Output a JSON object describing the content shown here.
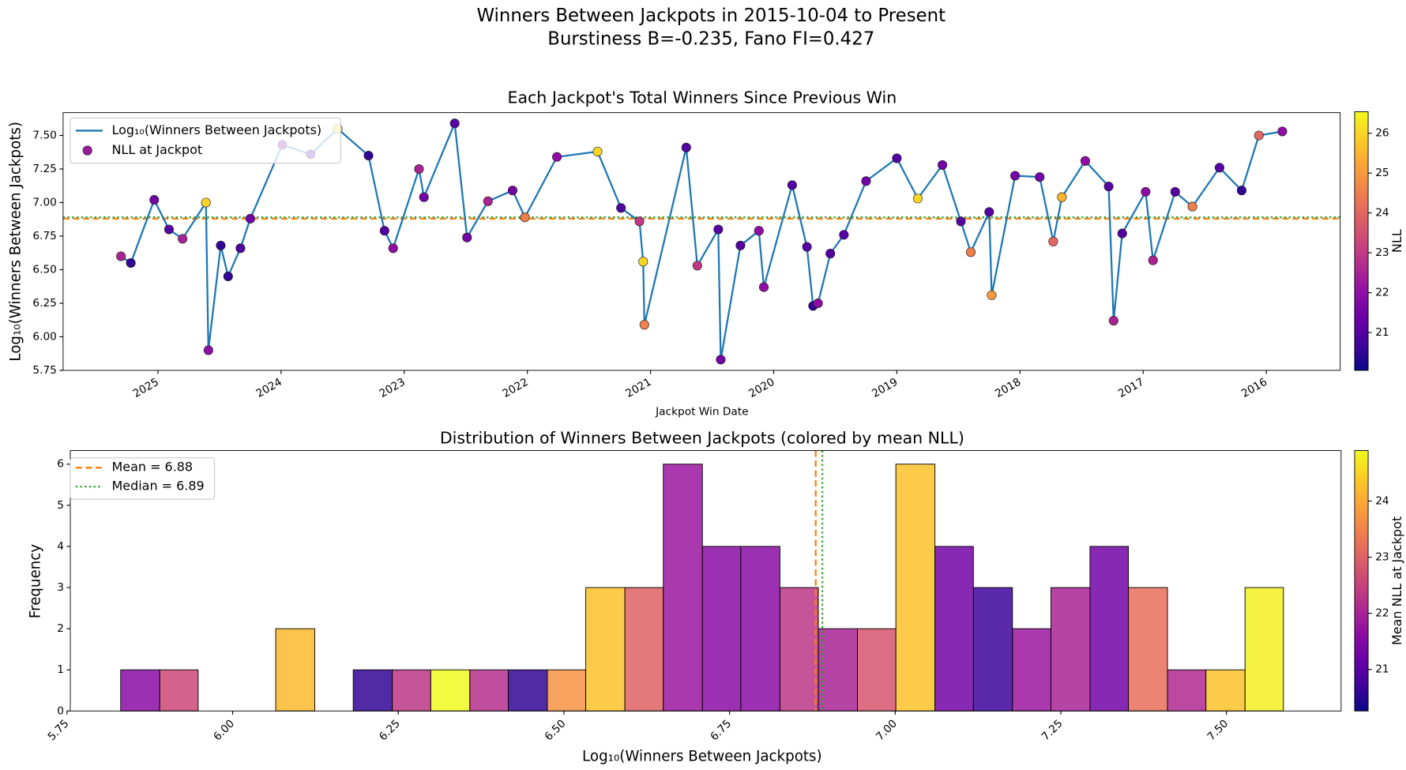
{
  "chart_data": [
    {
      "type": "line",
      "title": "Winners Between Jackpots in 2015-10-04 to Present",
      "subtitle": "Burstiness B=-0.235, Fano FI=0.427",
      "plot_title": "Each Jackpot's Total Winners Since Previous Win",
      "x_label": "Jackpot Win Date",
      "y_label": "Log₁₀(Winners Between Jackpots)",
      "x": [
        2025.3,
        2025.22,
        2025.03,
        2024.91,
        2024.8,
        2024.61,
        2024.59,
        2024.49,
        2024.43,
        2024.33,
        2024.25,
        2023.99,
        2023.76,
        2023.54,
        2023.29,
        2023.16,
        2023.09,
        2022.88,
        2022.84,
        2022.59,
        2022.49,
        2022.32,
        2022.12,
        2022.02,
        2021.76,
        2021.43,
        2021.24,
        2021.09,
        2021.06,
        2021.05,
        2020.71,
        2020.62,
        2020.45,
        2020.43,
        2020.27,
        2020.12,
        2020.08,
        2019.85,
        2019.73,
        2019.68,
        2019.64,
        2019.54,
        2019.43,
        2019.25,
        2019.0,
        2018.83,
        2018.63,
        2018.48,
        2018.4,
        2018.25,
        2018.23,
        2018.04,
        2017.84,
        2017.73,
        2017.66,
        2017.47,
        2017.28,
        2017.24,
        2017.17,
        2016.98,
        2016.92,
        2016.74,
        2016.6,
        2016.38,
        2016.2,
        2016.06,
        2015.87
      ],
      "series": [
        {
          "name": "Log₁₀(Winners Between Jackpots)",
          "color": "#1f77b4",
          "values": [
            6.6,
            6.55,
            7.02,
            6.8,
            6.73,
            7.0,
            5.9,
            6.68,
            6.45,
            6.66,
            6.88,
            7.43,
            7.36,
            7.55,
            7.35,
            6.79,
            6.66,
            7.25,
            7.04,
            7.59,
            6.74,
            7.01,
            7.09,
            6.89,
            7.34,
            7.38,
            6.96,
            6.86,
            6.56,
            6.09,
            7.41,
            6.53,
            6.8,
            5.83,
            6.68,
            6.79,
            6.37,
            7.13,
            6.67,
            6.23,
            6.25,
            6.62,
            6.76,
            7.16,
            7.33,
            7.03,
            7.28,
            6.86,
            6.63,
            6.93,
            6.31,
            7.2,
            7.19,
            6.71,
            7.04,
            7.31,
            7.12,
            6.12,
            6.77,
            7.08,
            6.57,
            7.08,
            6.97,
            7.26,
            7.09,
            7.5,
            7.53
          ]
        },
        {
          "name": "NLL at Jackpot",
          "values": [
            6.6,
            6.55,
            7.02,
            6.8,
            6.73,
            7.0,
            5.9,
            6.68,
            6.45,
            6.66,
            6.88,
            7.43,
            7.36,
            7.55,
            7.35,
            6.79,
            6.66,
            7.25,
            7.04,
            7.59,
            6.74,
            7.01,
            7.09,
            6.89,
            7.34,
            7.38,
            6.96,
            6.86,
            6.56,
            6.09,
            7.41,
            6.53,
            6.8,
            5.83,
            6.68,
            6.79,
            6.37,
            7.13,
            6.67,
            6.23,
            6.25,
            6.62,
            6.76,
            7.16,
            7.33,
            7.03,
            7.28,
            6.86,
            6.63,
            6.93,
            6.31,
            7.2,
            7.19,
            6.71,
            7.04,
            7.31,
            7.12,
            6.12,
            6.77,
            7.08,
            6.57,
            7.08,
            6.97,
            7.26,
            7.09,
            7.5,
            7.53
          ],
          "nll": [
            22.5,
            20.5,
            21.5,
            21,
            22.5,
            26,
            22,
            20.5,
            20.5,
            21,
            21.5,
            21.5,
            21,
            26,
            20.5,
            21,
            22,
            22.5,
            21.5,
            21,
            21.5,
            22.5,
            21.5,
            24.5,
            22,
            26,
            21,
            23,
            26,
            24.5,
            21,
            23,
            21,
            21.5,
            21,
            22,
            22,
            21,
            21,
            20.5,
            22,
            21,
            21,
            21.5,
            21,
            26,
            21.5,
            21,
            24.5,
            21,
            25,
            21.5,
            21.5,
            24,
            25.5,
            22,
            21,
            22.5,
            21,
            22,
            22.5,
            21,
            24.5,
            21,
            20.5,
            24,
            22
          ]
        }
      ],
      "xlim": [
        2025.77,
        2015.4
      ],
      "xticks": [
        2025,
        2024,
        2023,
        2022,
        2021,
        2020,
        2019,
        2018,
        2017,
        2016
      ],
      "ylim": [
        5.75,
        7.67
      ],
      "yticks": [
        5.75,
        {
          "value": 6.0,
          "label": "6.00"
        },
        6.25,
        {
          "value": 6.5,
          "label": "6.50"
        },
        6.75,
        {
          "value": 7.0,
          "label": "7.00"
        },
        7.25,
        {
          "value": 7.5,
          "label": "7.50"
        }
      ],
      "hlines": [
        {
          "value": 6.88,
          "color": "#ff7f0e",
          "style": "dashed"
        },
        {
          "value": 6.89,
          "color": "#2ca02c",
          "style": "dotted"
        }
      ],
      "colormap": "plasma",
      "colorbar": {
        "label": "NLL",
        "lim": [
          20.05,
          26.54
        ],
        "ticks": [
          21,
          22,
          23,
          24,
          25,
          26
        ]
      },
      "legend": "upper left"
    },
    {
      "type": "histogram",
      "title": "Distribution of Winners Between Jackpots (colored by mean NLL)",
      "x_label": "Log₁₀(Winners Between Jackpots)",
      "y_label": "Frequency",
      "bins": [
        5.831,
        5.89,
        5.948,
        6.007,
        6.065,
        6.124,
        6.182,
        6.241,
        6.299,
        6.358,
        6.416,
        6.475,
        6.533,
        6.592,
        6.65,
        6.709,
        6.767,
        6.826,
        6.884,
        6.943,
        7.001,
        7.06,
        7.118,
        7.177,
        7.235,
        7.294,
        7.352,
        7.411,
        7.469,
        7.528,
        7.586
      ],
      "values": [
        1,
        1,
        0,
        0,
        2,
        0,
        1,
        1,
        1,
        1,
        1,
        1,
        3,
        3,
        6,
        4,
        4,
        3,
        2,
        2,
        6,
        4,
        3,
        2,
        3,
        4,
        3,
        1,
        1,
        3
      ],
      "mean_nll": [
        21.6,
        22.6,
        null,
        null,
        24.2,
        null,
        20.6,
        22.3,
        24.9,
        22.2,
        20.6,
        23.7,
        24.3,
        23.0,
        21.8,
        21.6,
        21.6,
        22.3,
        22.0,
        22.8,
        24.3,
        21.3,
        20.7,
        21.8,
        22.0,
        21.3,
        23.2,
        22.1,
        24.3,
        24.8
      ],
      "xlim": [
        5.755,
        7.673
      ],
      "xticks": [
        5.75,
        {
          "value": 6.0,
          "label": "6.00"
        },
        6.25,
        {
          "value": 6.5,
          "label": "6.50"
        },
        6.75,
        {
          "value": 7.0,
          "label": "7.00"
        },
        7.25,
        {
          "value": 7.5,
          "label": "7.50"
        }
      ],
      "ylim": [
        0,
        6.33
      ],
      "yticks": [
        0,
        1,
        2,
        3,
        4,
        5,
        6
      ],
      "vlines": [
        {
          "name": "Mean = 6.88",
          "value": 6.88,
          "color": "#ff7f0e",
          "style": "dashed"
        },
        {
          "name": "Median = 6.89",
          "value": 6.89,
          "color": "#2ca02c",
          "style": "dotted"
        }
      ],
      "colormap": "plasma",
      "colorbar": {
        "label": "Mean NLL at Jackpot",
        "lim": [
          20.26,
          24.9
        ],
        "ticks": [
          21,
          22,
          23,
          24
        ]
      },
      "legend": "upper left"
    }
  ]
}
